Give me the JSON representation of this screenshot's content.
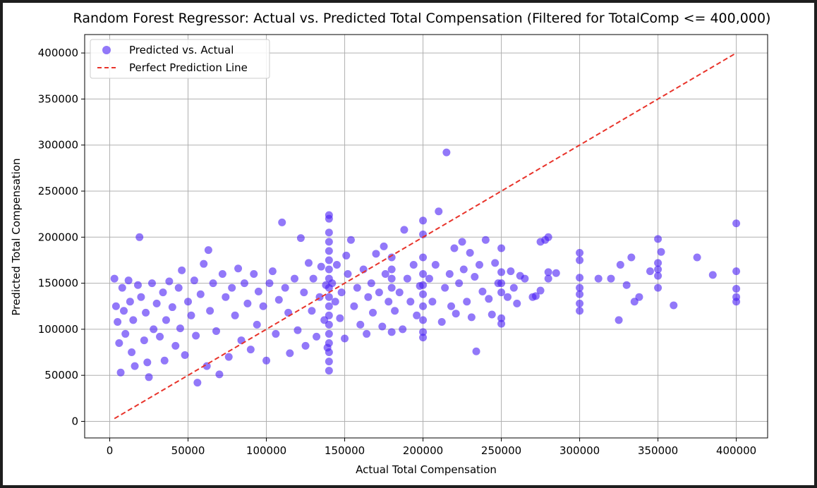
{
  "chart_data": {
    "type": "scatter",
    "title": "Random Forest Regressor: Actual vs. Predicted Total Compensation (Filtered for TotalComp <= 400,000)",
    "xlabel": "Actual Total Compensation",
    "ylabel": "Predicted Total Compensation",
    "xlim": [
      -16000,
      420000
    ],
    "ylim": [
      -18000,
      420000
    ],
    "xticks": [
      0,
      50000,
      100000,
      150000,
      200000,
      250000,
      300000,
      350000,
      400000
    ],
    "yticks": [
      0,
      50000,
      100000,
      150000,
      200000,
      250000,
      300000,
      350000,
      400000
    ],
    "grid": true,
    "legend_position": "top-left",
    "series": [
      {
        "name": "Predicted vs. Actual",
        "kind": "scatter",
        "color": "#4a1ef5",
        "points": [
          [
            3000,
            155000
          ],
          [
            4000,
            125000
          ],
          [
            5000,
            108000
          ],
          [
            6000,
            85000
          ],
          [
            7000,
            53000
          ],
          [
            8000,
            145000
          ],
          [
            9000,
            120000
          ],
          [
            10000,
            95000
          ],
          [
            12000,
            153000
          ],
          [
            13000,
            130000
          ],
          [
            14000,
            75000
          ],
          [
            15000,
            110000
          ],
          [
            16000,
            60000
          ],
          [
            18000,
            148000
          ],
          [
            19000,
            200000
          ],
          [
            20000,
            135000
          ],
          [
            22000,
            88000
          ],
          [
            23000,
            118000
          ],
          [
            24000,
            64000
          ],
          [
            25000,
            48000
          ],
          [
            27000,
            150000
          ],
          [
            28000,
            100000
          ],
          [
            30000,
            128000
          ],
          [
            32000,
            92000
          ],
          [
            34000,
            140000
          ],
          [
            35000,
            66000
          ],
          [
            36000,
            110000
          ],
          [
            38000,
            152000
          ],
          [
            40000,
            124000
          ],
          [
            42000,
            82000
          ],
          [
            44000,
            145000
          ],
          [
            45000,
            101000
          ],
          [
            46000,
            164000
          ],
          [
            48000,
            72000
          ],
          [
            50000,
            130000
          ],
          [
            52000,
            115000
          ],
          [
            54000,
            153000
          ],
          [
            55000,
            93000
          ],
          [
            56000,
            42000
          ],
          [
            58000,
            138000
          ],
          [
            60000,
            171000
          ],
          [
            62000,
            60000
          ],
          [
            63000,
            186000
          ],
          [
            64000,
            120000
          ],
          [
            66000,
            150000
          ],
          [
            68000,
            98000
          ],
          [
            70000,
            51000
          ],
          [
            72000,
            160000
          ],
          [
            74000,
            135000
          ],
          [
            76000,
            70000
          ],
          [
            78000,
            145000
          ],
          [
            80000,
            115000
          ],
          [
            82000,
            166000
          ],
          [
            84000,
            88000
          ],
          [
            86000,
            150000
          ],
          [
            88000,
            128000
          ],
          [
            90000,
            78000
          ],
          [
            92000,
            160000
          ],
          [
            94000,
            105000
          ],
          [
            95000,
            141000
          ],
          [
            98000,
            125000
          ],
          [
            100000,
            66000
          ],
          [
            102000,
            150000
          ],
          [
            104000,
            163000
          ],
          [
            106000,
            95000
          ],
          [
            108000,
            132000
          ],
          [
            110000,
            216000
          ],
          [
            112000,
            145000
          ],
          [
            114000,
            118000
          ],
          [
            115000,
            74000
          ],
          [
            118000,
            155000
          ],
          [
            120000,
            99000
          ],
          [
            122000,
            199000
          ],
          [
            124000,
            140000
          ],
          [
            125000,
            82000
          ],
          [
            127000,
            172000
          ],
          [
            129000,
            120000
          ],
          [
            130000,
            155000
          ],
          [
            132000,
            92000
          ],
          [
            134000,
            135000
          ],
          [
            135000,
            168000
          ],
          [
            137000,
            110000
          ],
          [
            138000,
            148000
          ],
          [
            139000,
            80000
          ],
          [
            140000,
            224000
          ],
          [
            140000,
            220000
          ],
          [
            140000,
            205000
          ],
          [
            140000,
            195000
          ],
          [
            140000,
            185000
          ],
          [
            140000,
            175000
          ],
          [
            140000,
            165000
          ],
          [
            140000,
            155000
          ],
          [
            140000,
            145000
          ],
          [
            140000,
            135000
          ],
          [
            140000,
            125000
          ],
          [
            140000,
            115000
          ],
          [
            140000,
            105000
          ],
          [
            140000,
            95000
          ],
          [
            140000,
            85000
          ],
          [
            140000,
            75000
          ],
          [
            140000,
            65000
          ],
          [
            140000,
            55000
          ],
          [
            142000,
            150000
          ],
          [
            144000,
            130000
          ],
          [
            145000,
            170000
          ],
          [
            147000,
            112000
          ],
          [
            148000,
            140000
          ],
          [
            150000,
            90000
          ],
          [
            151000,
            180000
          ],
          [
            152000,
            160000
          ],
          [
            154000,
            197000
          ],
          [
            156000,
            125000
          ],
          [
            158000,
            145000
          ],
          [
            160000,
            105000
          ],
          [
            162000,
            165000
          ],
          [
            164000,
            95000
          ],
          [
            165000,
            135000
          ],
          [
            167000,
            150000
          ],
          [
            168000,
            118000
          ],
          [
            170000,
            182000
          ],
          [
            172000,
            140000
          ],
          [
            174000,
            103000
          ],
          [
            175000,
            190000
          ],
          [
            176000,
            160000
          ],
          [
            178000,
            130000
          ],
          [
            180000,
            178000
          ],
          [
            180000,
            165000
          ],
          [
            180000,
            155000
          ],
          [
            180000,
            145000
          ],
          [
            180000,
            97000
          ],
          [
            182000,
            120000
          ],
          [
            185000,
            140000
          ],
          [
            187000,
            100000
          ],
          [
            188000,
            208000
          ],
          [
            190000,
            155000
          ],
          [
            192000,
            130000
          ],
          [
            194000,
            170000
          ],
          [
            196000,
            115000
          ],
          [
            198000,
            147000
          ],
          [
            200000,
            218000
          ],
          [
            200000,
            203000
          ],
          [
            200000,
            178000
          ],
          [
            200000,
            160000
          ],
          [
            200000,
            148000
          ],
          [
            200000,
            138000
          ],
          [
            200000,
            125000
          ],
          [
            200000,
            110000
          ],
          [
            200000,
            97000
          ],
          [
            200000,
            91000
          ],
          [
            204000,
            155000
          ],
          [
            206000,
            130000
          ],
          [
            208000,
            170000
          ],
          [
            210000,
            228000
          ],
          [
            212000,
            108000
          ],
          [
            214000,
            145000
          ],
          [
            215000,
            292000
          ],
          [
            217000,
            160000
          ],
          [
            218000,
            125000
          ],
          [
            220000,
            188000
          ],
          [
            221000,
            117000
          ],
          [
            223000,
            150000
          ],
          [
            225000,
            195000
          ],
          [
            226000,
            165000
          ],
          [
            228000,
            130000
          ],
          [
            230000,
            183000
          ],
          [
            231000,
            113000
          ],
          [
            233000,
            157000
          ],
          [
            234000,
            76000
          ],
          [
            236000,
            170000
          ],
          [
            238000,
            141000
          ],
          [
            240000,
            197000
          ],
          [
            242000,
            133000
          ],
          [
            244000,
            116000
          ],
          [
            246000,
            172000
          ],
          [
            248000,
            150000
          ],
          [
            250000,
            188000
          ],
          [
            250000,
            162000
          ],
          [
            250000,
            150000
          ],
          [
            250000,
            140000
          ],
          [
            250000,
            112000
          ],
          [
            250000,
            106000
          ],
          [
            254000,
            135000
          ],
          [
            256000,
            163000
          ],
          [
            258000,
            145000
          ],
          [
            260000,
            128000
          ],
          [
            262000,
            158000
          ],
          [
            265000,
            155000
          ],
          [
            270000,
            135000
          ],
          [
            272000,
            136000
          ],
          [
            275000,
            142000
          ],
          [
            275000,
            195000
          ],
          [
            278000,
            197000
          ],
          [
            280000,
            200000
          ],
          [
            280000,
            162000
          ],
          [
            280000,
            155000
          ],
          [
            285000,
            161000
          ],
          [
            300000,
            183000
          ],
          [
            300000,
            175000
          ],
          [
            300000,
            156000
          ],
          [
            300000,
            145000
          ],
          [
            300000,
            138000
          ],
          [
            300000,
            128000
          ],
          [
            300000,
            120000
          ],
          [
            312000,
            155000
          ],
          [
            320000,
            155000
          ],
          [
            325000,
            110000
          ],
          [
            326000,
            170000
          ],
          [
            330000,
            148000
          ],
          [
            333000,
            178000
          ],
          [
            335000,
            130000
          ],
          [
            338000,
            135000
          ],
          [
            345000,
            163000
          ],
          [
            350000,
            198000
          ],
          [
            350000,
            172000
          ],
          [
            350000,
            165000
          ],
          [
            350000,
            158000
          ],
          [
            350000,
            145000
          ],
          [
            352000,
            184000
          ],
          [
            360000,
            126000
          ],
          [
            375000,
            178000
          ],
          [
            385000,
            159000
          ],
          [
            400000,
            215000
          ],
          [
            400000,
            163000
          ],
          [
            400000,
            144000
          ],
          [
            400000,
            135000
          ],
          [
            400000,
            130000
          ]
        ]
      },
      {
        "name": "Perfect Prediction Line",
        "kind": "line",
        "color": "#e8332a",
        "dash": "dashed",
        "points": [
          [
            3000,
            3000
          ],
          [
            400000,
            400000
          ]
        ]
      }
    ]
  }
}
